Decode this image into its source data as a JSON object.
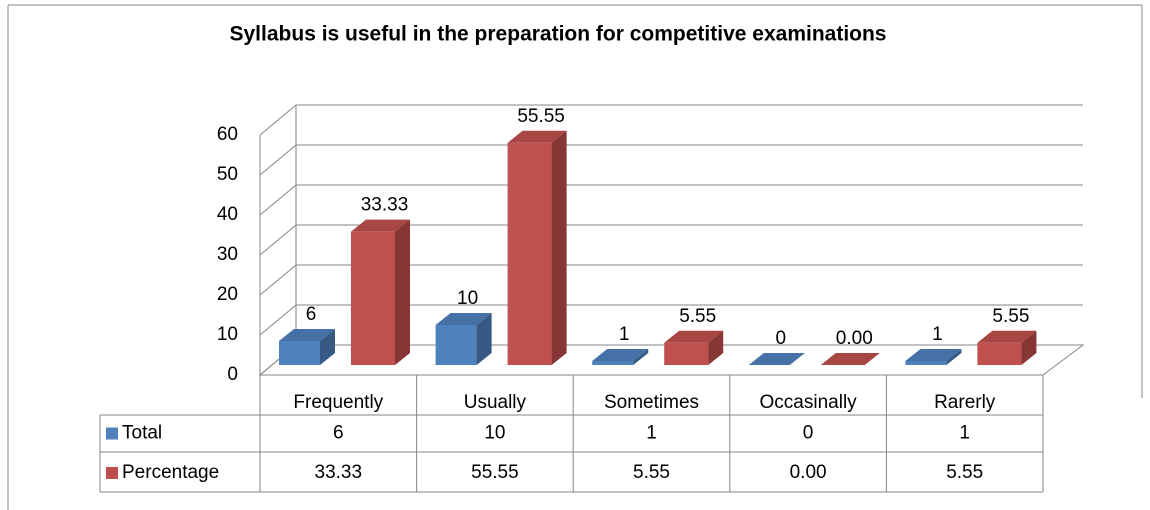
{
  "chart_data": {
    "type": "bar3d",
    "title": "Syllabus is useful in the preparation for competitive examinations",
    "categories": [
      "Frequently",
      "Usually",
      "Sometimes",
      "Occasinally",
      "Rarerly"
    ],
    "series": [
      {
        "name": "Total",
        "color": "#4f81bd",
        "values": [
          6,
          10,
          1,
          0,
          1
        ]
      },
      {
        "name": "Percentage",
        "color": "#c0504d",
        "values": [
          33.33,
          55.55,
          5.55,
          0,
          5.55
        ],
        "value_labels": [
          "33.33",
          "55.55",
          "5.55",
          "0.00",
          "5.55"
        ]
      }
    ],
    "ylim": [
      0,
      60
    ],
    "yticks": [
      0,
      10,
      20,
      30,
      40,
      50,
      60
    ],
    "grid": true,
    "data_table": true
  }
}
